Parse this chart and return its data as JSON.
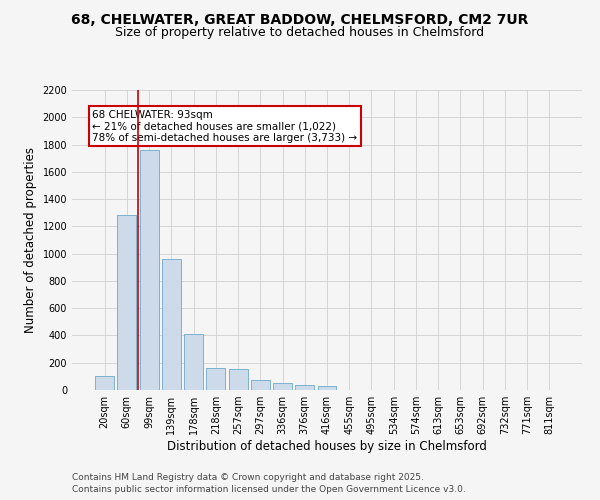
{
  "title_line1": "68, CHELWATER, GREAT BADDOW, CHELMSFORD, CM2 7UR",
  "title_line2": "Size of property relative to detached houses in Chelmsford",
  "xlabel": "Distribution of detached houses by size in Chelmsford",
  "ylabel": "Number of detached properties",
  "categories": [
    "20sqm",
    "60sqm",
    "99sqm",
    "139sqm",
    "178sqm",
    "218sqm",
    "257sqm",
    "297sqm",
    "336sqm",
    "376sqm",
    "416sqm",
    "455sqm",
    "495sqm",
    "534sqm",
    "574sqm",
    "613sqm",
    "653sqm",
    "692sqm",
    "732sqm",
    "771sqm",
    "811sqm"
  ],
  "values": [
    100,
    1280,
    1760,
    960,
    410,
    160,
    155,
    75,
    50,
    40,
    30,
    0,
    0,
    0,
    0,
    0,
    0,
    0,
    0,
    0,
    0
  ],
  "bar_color": "#ccdaea",
  "bar_edgecolor": "#6ea8cc",
  "grid_color": "#d0d0d0",
  "background_color": "#f5f5f5",
  "annotation_text": "68 CHELWATER: 93sqm\n← 21% of detached houses are smaller (1,022)\n78% of semi-detached houses are larger (3,733) →",
  "annotation_box_edgecolor": "#cc0000",
  "vline_color": "#cc0000",
  "vline_x": 1.5,
  "ylim": [
    0,
    2200
  ],
  "yticks": [
    0,
    200,
    400,
    600,
    800,
    1000,
    1200,
    1400,
    1600,
    1800,
    2000,
    2200
  ],
  "footer_line1": "Contains HM Land Registry data © Crown copyright and database right 2025.",
  "footer_line2": "Contains public sector information licensed under the Open Government Licence v3.0.",
  "title_fontsize": 10,
  "subtitle_fontsize": 9,
  "axis_label_fontsize": 8.5,
  "tick_fontsize": 7,
  "annotation_fontsize": 7.5,
  "footer_fontsize": 6.5
}
